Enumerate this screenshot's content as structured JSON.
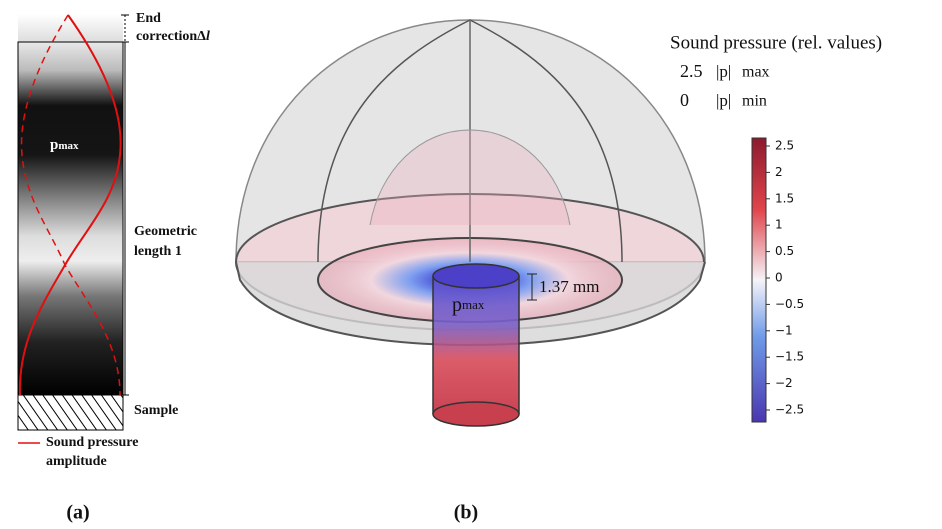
{
  "panel_a": {
    "end_correction": {
      "line1": "End",
      "line2": "correction",
      "symbol": "Δ",
      "var": "l"
    },
    "pressure_max": {
      "symbol": "p",
      "sub": "max"
    },
    "geometric_length": {
      "line1": "Geometric",
      "line2": "length 1"
    },
    "sample": "Sample",
    "legend": {
      "line1": "Sound pressure",
      "line2": "amplitude"
    },
    "caption": "(a)"
  },
  "panel_b": {
    "legend_title": "Sound pressure (rel. values)",
    "legend_rows": [
      {
        "value": "2.5",
        "symbol": "|p|",
        "sub": "max"
      },
      {
        "value": "0",
        "symbol": "|p|",
        "sub": "min"
      }
    ],
    "pressure_max": {
      "symbol": "p",
      "sub": "max"
    },
    "dimension": "1.37 mm",
    "colorbar_ticks": [
      "2.5",
      "2",
      "1.5",
      "1",
      "0.5",
      "0",
      "−0.5",
      "−1",
      "−1.5",
      "−2",
      "−2.5"
    ],
    "caption": "(b)"
  }
}
